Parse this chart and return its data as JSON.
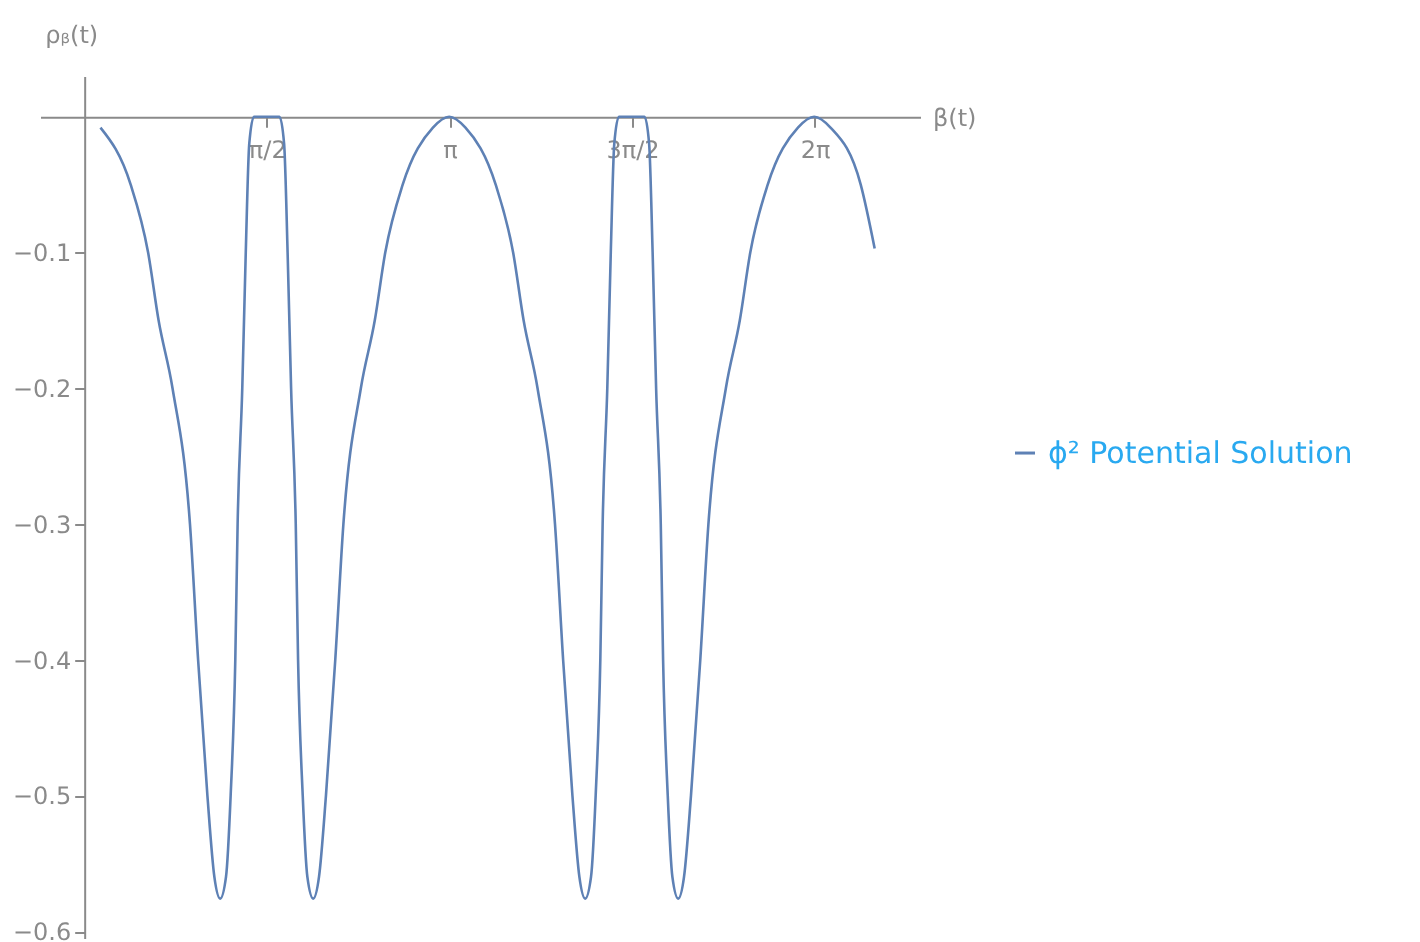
{
  "chart_data": {
    "type": "line",
    "xlabel": "β(t)",
    "ylabel": "ρᵦ(t)",
    "series": [
      {
        "name": "ϕ² Potential Solution",
        "color": "#5e81b5",
        "x": [
          0.14,
          0.4,
          0.55,
          0.64,
          0.76,
          0.91,
          0.98,
          1.06,
          1.12,
          1.17,
          1.22,
          1.26,
          1.3,
          1.32,
          1.36,
          1.39,
          1.42,
          1.46,
          1.57,
          1.68,
          1.72,
          1.75,
          1.78,
          1.82,
          1.84,
          1.88,
          1.92,
          1.97,
          2.02,
          2.08,
          2.16,
          2.23,
          2.38,
          2.5,
          2.59,
          2.74,
          3.0,
          3.14,
          3.28,
          3.54,
          3.69,
          3.78,
          3.9,
          4.05,
          4.12,
          4.2,
          4.26,
          4.31,
          4.36,
          4.4,
          4.44,
          4.46,
          4.5,
          4.53,
          4.56,
          4.6,
          4.71,
          4.82,
          4.86,
          4.89,
          4.92,
          4.96,
          4.98,
          5.02,
          5.06,
          5.11,
          5.16,
          5.22,
          5.3,
          5.37,
          5.52,
          5.64,
          5.73,
          5.88,
          6.14,
          6.28,
          6.42,
          6.68,
          6.8
        ],
        "values": [
          -0.008,
          -0.05,
          -0.1,
          -0.15,
          -0.2,
          -0.3,
          -0.4,
          -0.5,
          -0.56,
          -0.576,
          -0.56,
          -0.5,
          -0.4,
          -0.3,
          -0.2,
          -0.1,
          -0.02,
          0,
          0,
          0,
          -0.02,
          -0.1,
          -0.2,
          -0.3,
          -0.4,
          -0.5,
          -0.56,
          -0.576,
          -0.56,
          -0.5,
          -0.4,
          -0.3,
          -0.2,
          -0.15,
          -0.1,
          -0.05,
          -0.008,
          0,
          -0.008,
          -0.05,
          -0.1,
          -0.15,
          -0.2,
          -0.3,
          -0.4,
          -0.5,
          -0.56,
          -0.576,
          -0.56,
          -0.5,
          -0.4,
          -0.3,
          -0.2,
          -0.1,
          -0.02,
          0,
          0,
          0,
          -0.02,
          -0.1,
          -0.2,
          -0.3,
          -0.4,
          -0.5,
          -0.56,
          -0.576,
          -0.56,
          -0.5,
          -0.4,
          -0.3,
          -0.2,
          -0.15,
          -0.1,
          -0.05,
          -0.008,
          0,
          -0.008,
          -0.05,
          -0.097
        ]
      }
    ],
    "xlim": [
      -0.38,
      7.19
    ],
    "ylim": [
      -0.605,
      0.03
    ],
    "xticks": [
      {
        "value": 1.5708,
        "label": "π/2"
      },
      {
        "value": 3.1416,
        "label": "π"
      },
      {
        "value": 4.7124,
        "label": "3π/2"
      },
      {
        "value": 6.2832,
        "label": "2π"
      }
    ],
    "yticks": [
      -0.6,
      -0.5,
      -0.4,
      -0.3,
      -0.2,
      -0.1
    ],
    "grid": false,
    "legend": "right",
    "marker": "none",
    "line_style": "solid"
  }
}
